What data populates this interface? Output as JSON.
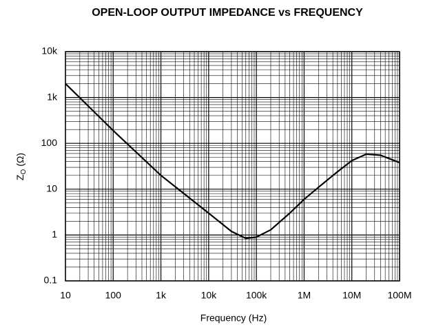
{
  "chart_data": {
    "type": "line",
    "title": "OPEN-LOOP OUTPUT IMPEDANCE vs FREQUENCY",
    "xlabel": "Frequency (Hz)",
    "ylabel": {
      "main": "Z",
      "sub": "O",
      "unit": "(Ω)"
    },
    "xscale": "log",
    "yscale": "log",
    "grid": true,
    "xlim": [
      10,
      100000000
    ],
    "ylim": [
      0.1,
      10000
    ],
    "xticks": [
      10,
      100,
      {
        "value": 1000,
        "label": "1k"
      },
      {
        "value": 10000,
        "label": "10k"
      },
      {
        "value": 100000,
        "label": "100k"
      },
      {
        "value": 1000000,
        "label": "1M"
      },
      {
        "value": 10000000,
        "label": "10M"
      },
      {
        "value": 100000000,
        "label": "100M"
      }
    ],
    "yticks": [
      0.1,
      1,
      10,
      100,
      {
        "value": 1000,
        "label": "1k"
      },
      {
        "value": 10000,
        "label": "10k"
      }
    ],
    "series": [
      {
        "color": "#000000",
        "x": [
          10,
          100,
          1000,
          10000,
          30000,
          60000,
          100000,
          200000,
          500000,
          1000000,
          2000000,
          5000000,
          10000000,
          20000000,
          40000000,
          100000000
        ],
        "values": [
          2000,
          190,
          20,
          3,
          1.2,
          0.85,
          0.9,
          1.3,
          3,
          6,
          11,
          24,
          42,
          58,
          55,
          38
        ]
      }
    ]
  }
}
